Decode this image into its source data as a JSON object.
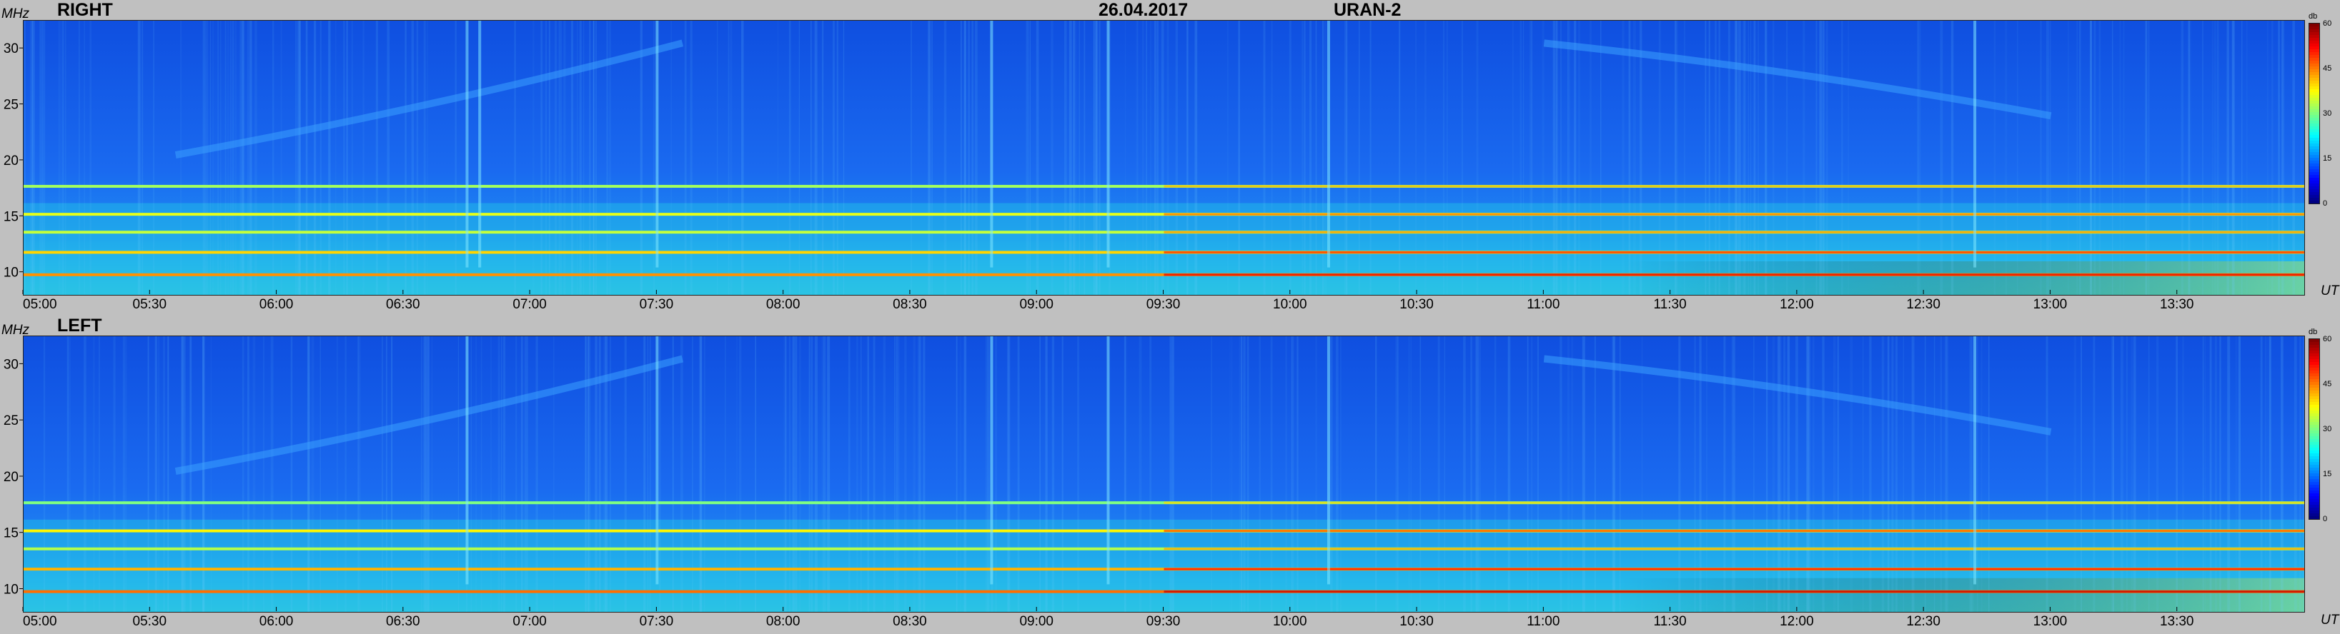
{
  "header": {
    "date": "26.04.2017",
    "station": "URAN-2"
  },
  "chart_data": [
    {
      "type": "heatmap",
      "title": "RIGHT",
      "ylabel": "MHz",
      "xlabel": "UT",
      "x_range_hours": [
        5.0,
        14.0
      ],
      "y_range_mhz": [
        8.0,
        32.5
      ],
      "x_ticks": [
        "05:00",
        "05:30",
        "06:00",
        "06:30",
        "07:00",
        "07:30",
        "08:00",
        "08:30",
        "09:00",
        "09:30",
        "10:00",
        "10:30",
        "11:00",
        "11:30",
        "12:00",
        "12:30",
        "13:00",
        "13:30"
      ],
      "y_ticks": [
        "30",
        "25",
        "20",
        "15",
        "10"
      ],
      "colorbar": {
        "label": "db",
        "ticks": [
          "60",
          "45",
          "30",
          "15",
          "0"
        ],
        "range": [
          0,
          60
        ]
      },
      "interference_bands_mhz": [
        {
          "freq": 9.8,
          "db": 44
        },
        {
          "freq": 11.8,
          "db": 40
        },
        {
          "freq": 13.6,
          "db": 34
        },
        {
          "freq": 15.2,
          "db": 36
        },
        {
          "freq": 17.7,
          "db": 32
        }
      ],
      "drifting_features": [
        {
          "from_time": 5.6,
          "from_mhz": 20.5,
          "to_time": 7.6,
          "to_mhz": 30.5
        },
        {
          "from_time": 11.0,
          "from_mhz": 30.5,
          "to_time": 13.0,
          "to_mhz": 24.0
        }
      ],
      "spikes_time_hours": [
        6.75,
        6.8,
        7.5,
        8.82,
        9.28,
        10.15,
        12.7
      ]
    },
    {
      "type": "heatmap",
      "title": "LEFT",
      "ylabel": "MHz",
      "xlabel": "UT",
      "x_range_hours": [
        5.0,
        14.0
      ],
      "y_range_mhz": [
        8.0,
        32.5
      ],
      "x_ticks": [
        "05:00",
        "05:30",
        "06:00",
        "06:30",
        "07:00",
        "07:30",
        "08:00",
        "08:30",
        "09:00",
        "09:30",
        "10:00",
        "10:30",
        "11:00",
        "11:30",
        "12:00",
        "12:30",
        "13:00",
        "13:30"
      ],
      "y_ticks": [
        "30",
        "25",
        "20",
        "15",
        "10"
      ],
      "colorbar": {
        "label": "db",
        "ticks": [
          "60",
          "45",
          "30",
          "15",
          "0"
        ],
        "range": [
          0,
          60
        ]
      },
      "interference_bands_mhz": [
        {
          "freq": 9.8,
          "db": 46
        },
        {
          "freq": 11.8,
          "db": 42
        },
        {
          "freq": 13.6,
          "db": 33
        },
        {
          "freq": 15.2,
          "db": 38
        },
        {
          "freq": 17.7,
          "db": 30
        }
      ],
      "drifting_features": [
        {
          "from_time": 5.6,
          "from_mhz": 20.5,
          "to_time": 7.6,
          "to_mhz": 30.5
        },
        {
          "from_time": 11.0,
          "from_mhz": 30.5,
          "to_time": 13.0,
          "to_mhz": 24.0
        }
      ],
      "spikes_time_hours": [
        6.75,
        7.5,
        8.82,
        9.28,
        10.15,
        12.7
      ]
    }
  ]
}
